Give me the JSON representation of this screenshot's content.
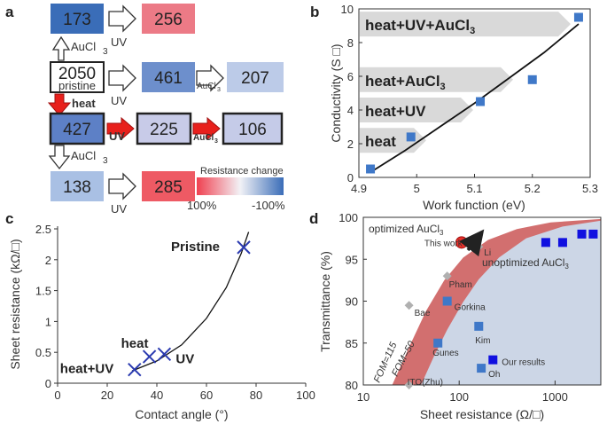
{
  "panels": {
    "a": {
      "label": "a",
      "boxes": [
        {
          "value": "173",
          "color": "#3a6db8",
          "text_color": "#ffffff"
        },
        {
          "value": "256",
          "color": "#ec7a86"
        },
        {
          "value": "2050",
          "sub": "pristine",
          "color": "#ffffff"
        },
        {
          "value": "461",
          "color": "#6d8fcc"
        },
        {
          "value": "207",
          "color": "#bccbe8"
        },
        {
          "value": "427",
          "color": "#5d80c6"
        },
        {
          "value": "225",
          "color": "#c8cbe8"
        },
        {
          "value": "106",
          "color": "#c5cbe8"
        },
        {
          "value": "138",
          "color": "#a9c0e4"
        },
        {
          "value": "285",
          "color": "#ee5a64"
        }
      ],
      "arrows": {
        "auc1": "AuCl",
        "uv1": "UV",
        "uv2": "UV",
        "auc2": "AuCl",
        "heat": "heat",
        "uv3": "UV",
        "auc3": "AuCl",
        "auc4": "AuCl",
        "uv4": "UV",
        "sub3": "3"
      },
      "legend": {
        "title": "Resistance change",
        "left": "100%",
        "right": "-100%"
      }
    },
    "b": {
      "label": "b",
      "banners": [
        "heat+UV+AuCl",
        "heat+AuCl",
        "heat+UV",
        "heat"
      ],
      "sub3": "3"
    },
    "c": {
      "label": "c"
    },
    "d": {
      "label": "d",
      "annotations": {
        "optimized": "optimized AuCl",
        "unoptimized": "unoptimized AuCl",
        "sub3": "3",
        "fom115": "FOM=115",
        "fom50": "FOM=50"
      }
    }
  },
  "chart_data": [
    {
      "panel": "b",
      "type": "scatter",
      "xlabel": "Work function (eV)",
      "ylabel": "Conductivity (S □)",
      "xlim": [
        4.9,
        5.3
      ],
      "ylim": [
        0,
        10
      ],
      "xticks": [
        "4.9",
        "5",
        "5.1",
        "5.2",
        "5.3"
      ],
      "yticks": [
        "0",
        "2",
        "4",
        "6",
        "8",
        "10"
      ],
      "x": [
        4.92,
        4.99,
        5.11,
        5.2,
        5.28
      ],
      "y": [
        0.5,
        2.4,
        4.5,
        5.8,
        9.5
      ],
      "fit": {
        "x": [
          4.92,
          4.98,
          5.04,
          5.1,
          5.16,
          5.22,
          5.28
        ],
        "y": [
          0.3,
          1.6,
          3.0,
          4.4,
          5.9,
          7.4,
          9.1
        ]
      },
      "color": "#3f78c8"
    },
    {
      "panel": "c",
      "type": "scatter",
      "xlabel": "Contact angle (°)",
      "ylabel": "Sheet resistance (kΩ/□)",
      "xlim": [
        0,
        100
      ],
      "ylim": [
        0,
        2.5
      ],
      "xticks": [
        "0",
        "20",
        "40",
        "60",
        "80",
        "100"
      ],
      "yticks": [
        "0",
        "0.5",
        "1",
        "1.5",
        "2",
        "2.5"
      ],
      "points": [
        {
          "label": "heat+UV",
          "x": 31,
          "y": 0.22
        },
        {
          "label": "heat",
          "x": 37,
          "y": 0.43
        },
        {
          "label": "UV",
          "x": 43,
          "y": 0.47
        },
        {
          "label": "Pristine",
          "x": 75,
          "y": 2.2
        }
      ],
      "fit": {
        "x": [
          30,
          40,
          50,
          60,
          68,
          74,
          77
        ],
        "y": [
          0.2,
          0.36,
          0.62,
          1.05,
          1.55,
          2.1,
          2.45
        ]
      },
      "color": "#2a3ab0"
    },
    {
      "panel": "d",
      "type": "scatter",
      "xscale": "log",
      "xlabel": "Sheet resistance (Ω/□)",
      "ylabel": "Transmittance (%)",
      "xlim": [
        10,
        3000
      ],
      "ylim": [
        80,
        100
      ],
      "xticks": [
        "10",
        "100",
        "1000"
      ],
      "yticks": [
        "80",
        "85",
        "90",
        "95",
        "100"
      ],
      "labeled_points": [
        {
          "label": "This work",
          "x": 106,
          "y": 97,
          "color": "#e8302a"
        },
        {
          "label": "Li",
          "x": 160,
          "y": 96.5,
          "color": "#b0b0b0"
        },
        {
          "label": "Pham",
          "x": 75,
          "y": 93,
          "color": "#b0b0b0"
        },
        {
          "label": "Bae",
          "x": 30,
          "y": 89.5,
          "color": "#b0b0b0"
        },
        {
          "label": "Gorkina",
          "x": 75,
          "y": 90,
          "color": "#3f78c8"
        },
        {
          "label": "Kim",
          "x": 160,
          "y": 87,
          "color": "#3f78c8"
        },
        {
          "label": "Gunes",
          "x": 60,
          "y": 85,
          "color": "#3f78c8"
        },
        {
          "label": "Our results",
          "x": 225,
          "y": 83,
          "color": "#1010e0"
        },
        {
          "label": "Oh",
          "x": 170,
          "y": 82,
          "color": "#3f78c8"
        },
        {
          "label": "ITO(Zhu)",
          "x": 30,
          "y": 80,
          "color": "#b0b0b0"
        }
      ],
      "unoptimized": {
        "x": [
          800,
          1200,
          1900,
          2500
        ],
        "y": [
          97,
          97,
          98,
          98
        ]
      },
      "fom_curves": {
        "fom115": {
          "x": [
            20,
            30,
            45,
            70,
            110,
            200,
            400,
            900,
            3000
          ],
          "y": [
            80,
            84.5,
            88.8,
            92.5,
            95.2,
            97.3,
            98.6,
            99.4,
            99.8
          ]
        },
        "fom50": {
          "x": [
            40,
            55,
            75,
            110,
            160,
            260,
            500,
            1200,
            3000
          ],
          "y": [
            80,
            83.5,
            86.6,
            89.9,
            92.6,
            95.2,
            97.5,
            98.9,
            99.6
          ]
        }
      }
    }
  ]
}
